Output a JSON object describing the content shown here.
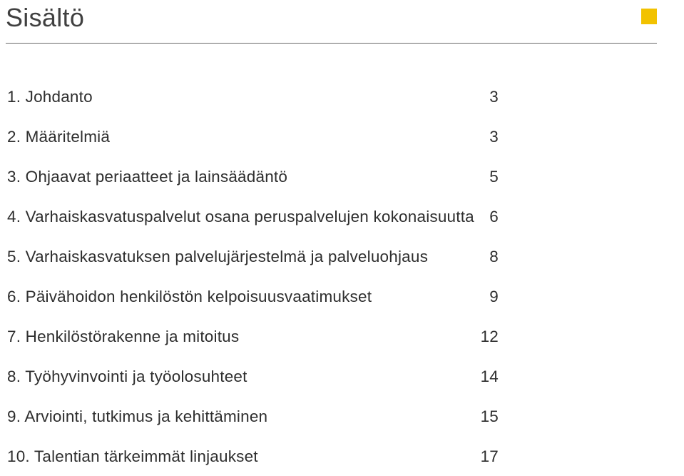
{
  "title": "Sisältö",
  "accent_color": "#f2c200",
  "toc": [
    {
      "label": "1. Johdanto",
      "page": "3"
    },
    {
      "label": "2. Määritelmiä",
      "page": "3"
    },
    {
      "label": "3. Ohjaavat periaatteet ja lainsäädäntö",
      "page": "5"
    },
    {
      "label": "4. Varhaiskasvatuspalvelut osana peruspalvelujen kokonaisuutta",
      "page": "6"
    },
    {
      "label": "5. Varhaiskasvatuksen palvelujärjestelmä ja palveluohjaus",
      "page": "8"
    },
    {
      "label": "6. Päivähoidon henkilöstön kelpoisuusvaatimukset",
      "page": "9"
    },
    {
      "label": "7. Henkilöstörakenne ja mitoitus",
      "page": "12"
    },
    {
      "label": "8. Työhyvinvointi ja työolosuhteet",
      "page": "14"
    },
    {
      "label": "9. Arviointi, tutkimus ja kehittäminen",
      "page": "15"
    },
    {
      "label": "10. Talentian tärkeimmät linjaukset",
      "page": "17"
    }
  ]
}
